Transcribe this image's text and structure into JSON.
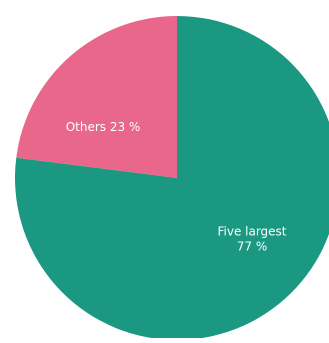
{
  "chart_data": {
    "type": "pie",
    "title": "",
    "slices": [
      {
        "name": "Five largest",
        "label_lines": [
          "Five largest",
          "77 %"
        ],
        "value": 77,
        "color": "#1a9882"
      },
      {
        "name": "Others",
        "label_lines": [
          "Others 23 %"
        ],
        "value": 23,
        "color": "#e8678b"
      }
    ],
    "start_position": "top",
    "direction": "clockwise",
    "legend": "none"
  }
}
